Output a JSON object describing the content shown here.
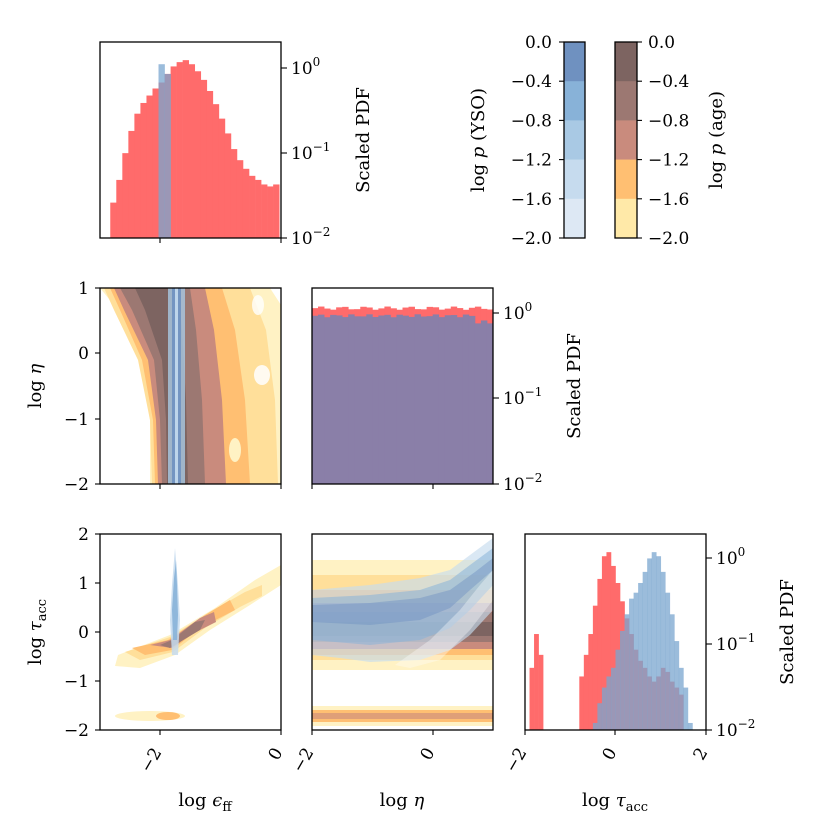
{
  "chart_data": [
    {
      "id": "hist_eff",
      "type": "bar",
      "title": "",
      "xlabel": "",
      "ylabel": "Scaled PDF",
      "yscale": "log",
      "xlim": [
        -3.0,
        0.0
      ],
      "ylim": [
        0.01,
        1.6
      ],
      "yticks": [
        "10^0",
        "10^-1",
        "10^-2"
      ],
      "series": [
        {
          "name": "age",
          "color": "#ff6b6b",
          "x": [
            -2.78,
            -2.68,
            -2.58,
            -2.48,
            -2.38,
            -2.28,
            -2.18,
            -2.08,
            -1.98,
            -1.88,
            -1.78,
            -1.68,
            -1.58,
            -1.48,
            -1.38,
            -1.28,
            -1.18,
            -1.08,
            -0.98,
            -0.88,
            -0.78,
            -0.68,
            -0.58,
            -0.48,
            -0.38,
            -0.28,
            -0.18,
            -0.08
          ],
          "values": [
            0.025,
            0.045,
            0.09,
            0.16,
            0.25,
            0.33,
            0.4,
            0.48,
            0.56,
            0.7,
            0.85,
            0.95,
            1.0,
            0.9,
            0.75,
            0.6,
            0.45,
            0.32,
            0.22,
            0.15,
            0.1,
            0.075,
            0.06,
            0.05,
            0.045,
            0.04,
            0.038,
            0.04
          ]
        },
        {
          "name": "YSO",
          "color": "#7aa6cf",
          "x": [
            -1.98,
            -1.88
          ],
          "values": [
            0.9,
            0.7
          ]
        }
      ]
    },
    {
      "id": "contour_eta_eff",
      "type": "heatmap",
      "xlabel": "",
      "ylabel": "log η",
      "xlim": [
        -3.0,
        0.0
      ],
      "ylim": [
        -2,
        1
      ],
      "yticks": [
        "1",
        "0",
        "−1",
        "−2"
      ],
      "description_series": [
        {
          "name": "age",
          "ridge_x_at_eta_top": -1.9,
          "ridge_x_at_eta_bottom": -1.85
        },
        {
          "name": "YSO",
          "x_center": -1.85,
          "x_width": 0.1
        }
      ]
    },
    {
      "id": "hist_eta",
      "type": "bar",
      "ylabel": "Scaled PDF",
      "yscale": "log",
      "xlim": [
        -2,
        1
      ],
      "ylim": [
        0.01,
        1.6
      ],
      "yticks": [
        "10^0",
        "10^-1",
        "10^-2"
      ],
      "series": [
        {
          "name": "age",
          "color": "#ff6b6b",
          "values_const": 0.95
        },
        {
          "name": "YSO",
          "color": "#8a7fa8",
          "values_const": 0.78
        }
      ]
    },
    {
      "id": "contour_tau_eff",
      "type": "heatmap",
      "xlabel": "log ε_ff",
      "ylabel": "log τ_acc",
      "xlim": [
        -3.0,
        0.0
      ],
      "ylim": [
        -2,
        2
      ],
      "xticks": [
        "−2",
        "0"
      ],
      "yticks": [
        "2",
        "1",
        "0",
        "−1",
        "−2"
      ]
    },
    {
      "id": "contour_tau_eta",
      "type": "heatmap",
      "xlabel": "log η",
      "xlim": [
        -2,
        1
      ],
      "ylim": [
        -2,
        2
      ],
      "xticks": [
        "−2",
        "0"
      ]
    },
    {
      "id": "hist_tau",
      "type": "bar",
      "xlabel": "log τ_acc",
      "ylabel": "Scaled PDF",
      "yscale": "log",
      "xlim": [
        -2,
        2
      ],
      "ylim": [
        0.01,
        1.6
      ],
      "xticks": [
        "−2",
        "0",
        "2"
      ],
      "yticks": [
        "10^0",
        "10^-1",
        "10^-2"
      ],
      "series": [
        {
          "name": "age",
          "color": "#ff6b6b",
          "x": [
            -1.85,
            -1.75,
            -1.65,
            -0.75,
            -0.65,
            -0.55,
            -0.45,
            -0.35,
            -0.25,
            -0.15,
            -0.05,
            0.05,
            0.15,
            0.25,
            0.35,
            0.45,
            0.55,
            0.65,
            0.75,
            0.85,
            0.95,
            1.05,
            1.15,
            1.25,
            1.35,
            1.45
          ],
          "values": [
            0.05,
            0.12,
            0.07,
            0.04,
            0.07,
            0.12,
            0.25,
            0.5,
            0.9,
            1.0,
            0.7,
            0.45,
            0.28,
            0.18,
            0.12,
            0.08,
            0.06,
            0.05,
            0.04,
            0.035,
            0.04,
            0.05,
            0.045,
            0.035,
            0.03,
            0.025
          ]
        },
        {
          "name": "YSO",
          "color": "#7aa6cf",
          "x": [
            -0.45,
            -0.35,
            -0.25,
            -0.15,
            -0.05,
            0.05,
            0.15,
            0.25,
            0.35,
            0.45,
            0.55,
            0.65,
            0.75,
            0.85,
            0.95,
            1.05,
            1.15,
            1.25,
            1.35,
            1.45,
            1.55,
            1.65
          ],
          "values": [
            0.012,
            0.02,
            0.03,
            0.04,
            0.05,
            0.08,
            0.13,
            0.2,
            0.3,
            0.35,
            0.45,
            0.6,
            0.85,
            1.0,
            0.9,
            0.6,
            0.35,
            0.2,
            0.1,
            0.05,
            0.03,
            0.012
          ]
        }
      ]
    }
  ],
  "colorbars": {
    "yso": {
      "label": "log p (YSO)",
      "ticks": [
        "0.0",
        "−0.4",
        "−0.8",
        "−1.2",
        "−1.6",
        "−2.0"
      ],
      "colors": [
        "#eef3fb",
        "#dde8f4",
        "#c6dbee",
        "#a9c9e4",
        "#88b2d8",
        "#6f91c0"
      ]
    },
    "age": {
      "label": "log p (age)",
      "ticks": [
        "0.0",
        "−0.4",
        "−0.8",
        "−1.2",
        "−1.6",
        "−2.0"
      ],
      "colors": [
        "#fffbe0",
        "#ffe9a8",
        "#ffbf72",
        "#c98b7d",
        "#9c7872",
        "#7d6461"
      ]
    }
  },
  "labels": {
    "scaled_pdf": "Scaled PDF",
    "log_eta": "log",
    "log_tau": "log",
    "log_eff": "log"
  }
}
